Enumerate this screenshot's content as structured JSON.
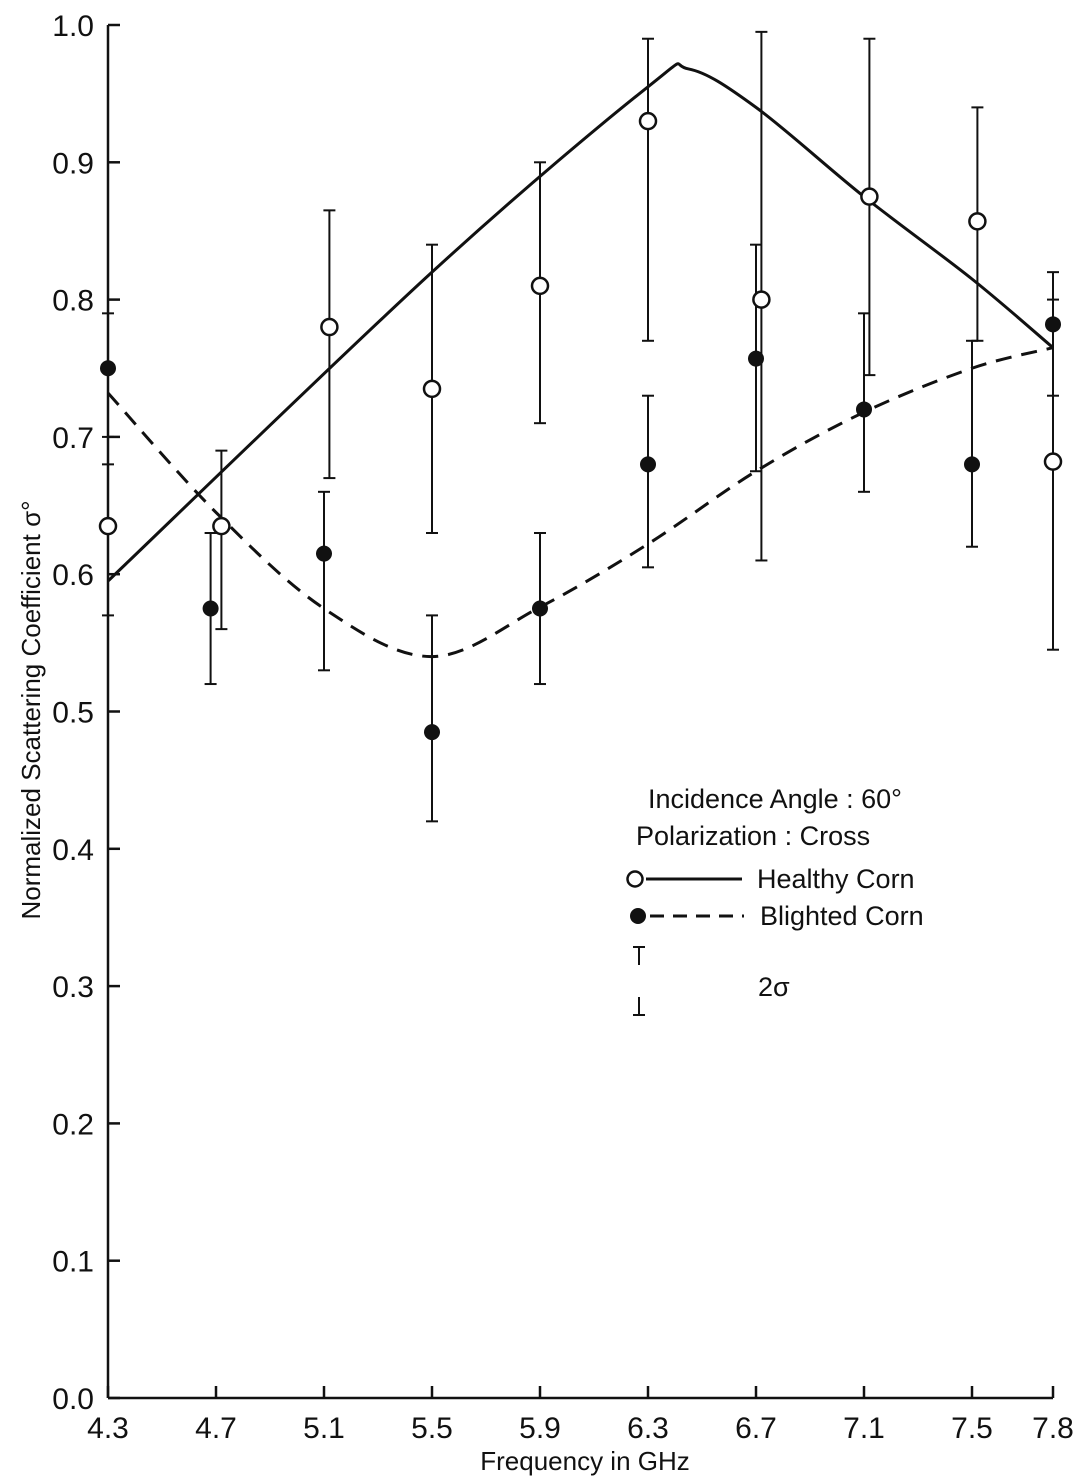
{
  "chart_data": {
    "type": "scatter",
    "title": "",
    "xlabel": "Frequency in GHz",
    "ylabel": "Normalized Scattering Coefficient σ°",
    "x_ticks": [
      "4.3",
      "4.7",
      "5.1",
      "5.5",
      "5.9",
      "6.3",
      "6.7",
      "7.1",
      "7.5",
      "7.8"
    ],
    "y_ticks": [
      "0.0",
      "0.1",
      "0.2",
      "0.3",
      "0.4",
      "0.5",
      "0.6",
      "0.7",
      "0.8",
      "0.9",
      "1.0"
    ],
    "xlim": [
      4.3,
      7.8
    ],
    "ylim": [
      0.0,
      1.0
    ],
    "grid": false,
    "legend_position": "right-center",
    "legend": {
      "line1": "Incidence Angle : 60°",
      "line2": "Polarization : Cross",
      "healthy_label": "Healthy Corn",
      "blighted_label": "Blighted Corn",
      "errorbar_label": "2σ"
    },
    "series": [
      {
        "name": "Healthy Corn",
        "marker": "open-circle",
        "line_style": "solid",
        "points": [
          {
            "x": 4.3,
            "y": 0.635,
            "err_low": 0.57,
            "err_high": 0.7
          },
          {
            "x": 4.72,
            "y": 0.635,
            "err_low": 0.56,
            "err_high": 0.69
          },
          {
            "x": 5.12,
            "y": 0.78,
            "err_low": 0.67,
            "err_high": 0.865
          },
          {
            "x": 5.5,
            "y": 0.735,
            "err_low": 0.63,
            "err_high": 0.84
          },
          {
            "x": 5.9,
            "y": 0.81,
            "err_low": 0.71,
            "err_high": 0.9
          },
          {
            "x": 6.3,
            "y": 0.93,
            "err_low": 0.77,
            "err_high": 0.99
          },
          {
            "x": 6.72,
            "y": 0.8,
            "err_low": 0.61,
            "err_high": 0.995
          },
          {
            "x": 7.12,
            "y": 0.875,
            "err_low": 0.745,
            "err_high": 0.99
          },
          {
            "x": 7.52,
            "y": 0.857,
            "err_low": 0.77,
            "err_high": 0.94
          },
          {
            "x": 7.8,
            "y": 0.682,
            "err_low": 0.545,
            "err_high": 0.8
          }
        ],
        "curve": [
          {
            "x": 4.3,
            "y": 0.595
          },
          {
            "x": 5.5,
            "y": 0.82
          },
          {
            "x": 6.3,
            "y": 0.955
          },
          {
            "x": 6.45,
            "y": 0.968
          },
          {
            "x": 6.7,
            "y": 0.94
          },
          {
            "x": 7.1,
            "y": 0.875
          },
          {
            "x": 7.5,
            "y": 0.815
          },
          {
            "x": 7.8,
            "y": 0.765
          }
        ]
      },
      {
        "name": "Blighted Corn",
        "marker": "filled-circle",
        "line_style": "dashed",
        "points": [
          {
            "x": 4.3,
            "y": 0.75,
            "err_low": 0.68,
            "err_high": 0.79
          },
          {
            "x": 4.68,
            "y": 0.575,
            "err_low": 0.52,
            "err_high": 0.63
          },
          {
            "x": 5.1,
            "y": 0.615,
            "err_low": 0.53,
            "err_high": 0.66
          },
          {
            "x": 5.5,
            "y": 0.485,
            "err_low": 0.42,
            "err_high": 0.57
          },
          {
            "x": 5.9,
            "y": 0.575,
            "err_low": 0.52,
            "err_high": 0.63
          },
          {
            "x": 6.3,
            "y": 0.68,
            "err_low": 0.605,
            "err_high": 0.73
          },
          {
            "x": 6.7,
            "y": 0.757,
            "err_low": 0.675,
            "err_high": 0.84
          },
          {
            "x": 7.1,
            "y": 0.72,
            "err_low": 0.66,
            "err_high": 0.79
          },
          {
            "x": 7.5,
            "y": 0.68,
            "err_low": 0.62,
            "err_high": 0.77
          },
          {
            "x": 7.8,
            "y": 0.782,
            "err_low": 0.73,
            "err_high": 0.82
          }
        ],
        "curve": [
          {
            "x": 4.3,
            "y": 0.732
          },
          {
            "x": 4.7,
            "y": 0.645
          },
          {
            "x": 5.1,
            "y": 0.575
          },
          {
            "x": 5.5,
            "y": 0.54
          },
          {
            "x": 5.9,
            "y": 0.576
          },
          {
            "x": 6.3,
            "y": 0.622
          },
          {
            "x": 6.7,
            "y": 0.675
          },
          {
            "x": 7.1,
            "y": 0.718
          },
          {
            "x": 7.5,
            "y": 0.75
          },
          {
            "x": 7.8,
            "y": 0.765
          }
        ]
      }
    ]
  }
}
